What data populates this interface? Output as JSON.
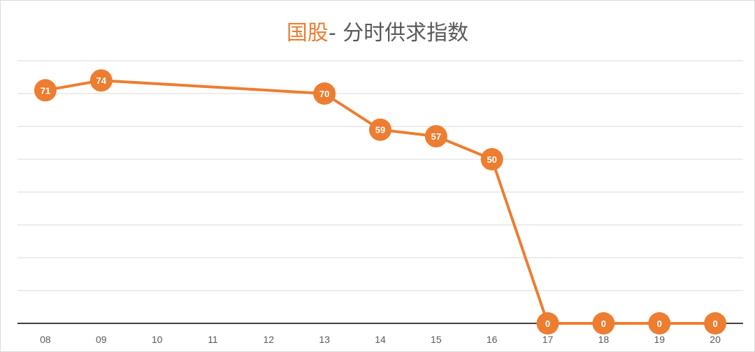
{
  "title": {
    "highlight": "国股",
    "rest": "- 分时供求指数"
  },
  "colors": {
    "accent": "#ed7d31",
    "title_text": "#595959",
    "grid": "#d9d9d9",
    "axis": "#404040",
    "label": "#ffffff"
  },
  "chart_data": {
    "type": "line",
    "title": "国股- 分时供求指数",
    "categories": [
      "08",
      "09",
      "10",
      "11",
      "12",
      "13",
      "14",
      "15",
      "16",
      "17",
      "18",
      "19",
      "20"
    ],
    "series": [
      {
        "values": [
          71,
          74,
          null,
          null,
          null,
          70,
          59,
          57,
          50,
          0,
          0,
          0,
          0
        ]
      }
    ],
    "ylim": [
      0,
      80
    ],
    "ytick_step": 10,
    "y_tick_labels_visible": false,
    "grid": true,
    "data_labels": true,
    "legend": "none"
  }
}
